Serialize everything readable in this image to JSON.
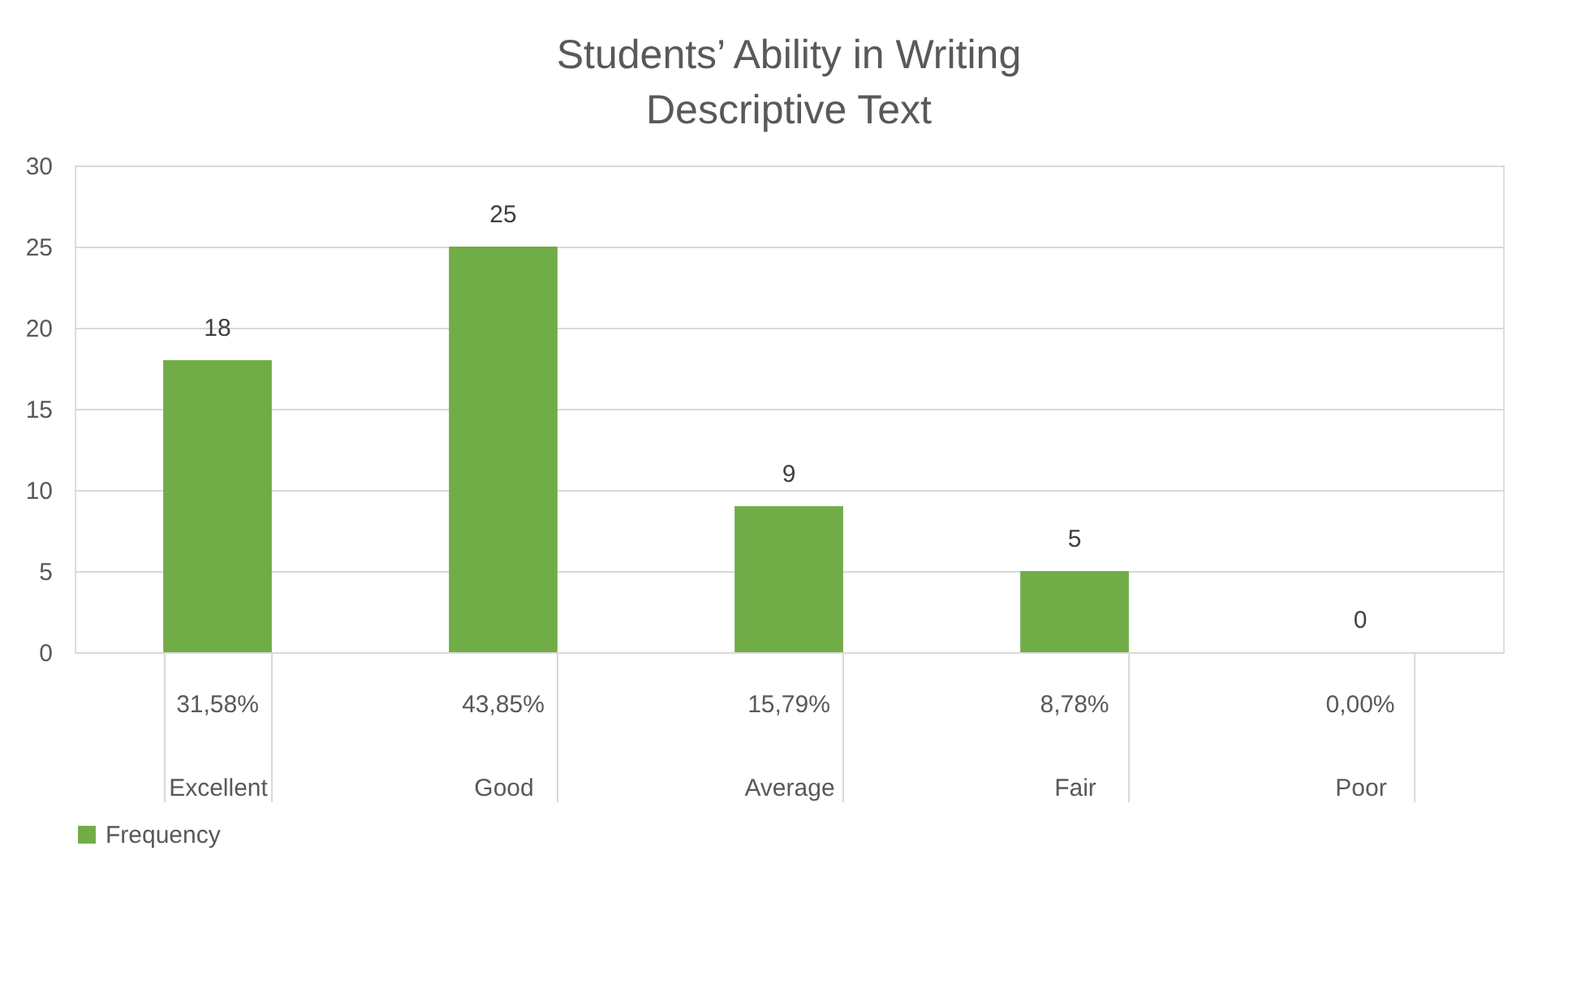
{
  "chart_data": {
    "type": "bar",
    "title": "Students’ Ability in Writing Descriptive Text",
    "categories": [
      "Excellent",
      "Good",
      "Average",
      "Fair",
      "Poor"
    ],
    "series": [
      {
        "name": "Frequency",
        "color": "#70ad47",
        "values": [
          18,
          25,
          9,
          5,
          0
        ]
      }
    ],
    "ylim": [
      0,
      30
    ],
    "yticks": [
      0,
      5,
      10,
      15,
      20,
      25,
      30
    ],
    "grid": "y",
    "legend": "bottom",
    "data_labels": true,
    "annotations": [
      "31,58%",
      "43,85%",
      "15,79%",
      "8,78%",
      "0,00%"
    ]
  }
}
